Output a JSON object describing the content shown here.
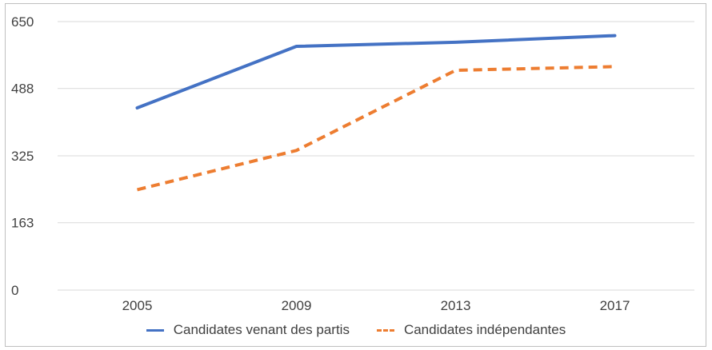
{
  "chart_data": {
    "type": "line",
    "title": "",
    "xlabel": "",
    "ylabel": "",
    "categories": [
      "2005",
      "2009",
      "2013",
      "2017"
    ],
    "y_ticks": [
      "0",
      "163",
      "325",
      "488",
      "650"
    ],
    "ylim": [
      0,
      650
    ],
    "grid": true,
    "legend_position": "bottom",
    "series": [
      {
        "name": "Candidates venant des partis",
        "values": [
          441,
          590,
          600,
          616
        ],
        "color": "#4472c4",
        "style": "solid"
      },
      {
        "name": "Candidates indépendantes",
        "values": [
          243,
          338,
          532,
          541
        ],
        "color": "#ed7d31",
        "style": "dashed"
      }
    ]
  }
}
